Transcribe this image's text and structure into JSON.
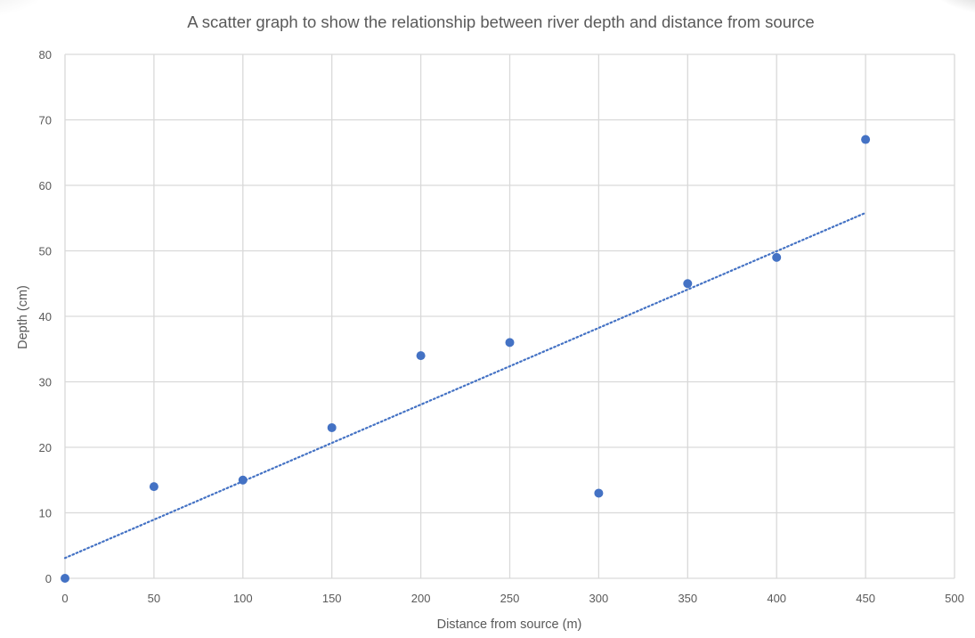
{
  "chart_data": {
    "type": "scatter",
    "title": "A scatter graph to show the relationship between river depth and distance from source",
    "xlabel": "Distance from source (m)",
    "ylabel": "Depth (cm)",
    "xlim": [
      0,
      500
    ],
    "ylim": [
      0,
      80
    ],
    "x_ticks": [
      0,
      50,
      100,
      150,
      200,
      250,
      300,
      350,
      400,
      450,
      500
    ],
    "y_ticks": [
      0,
      10,
      20,
      30,
      40,
      50,
      60,
      70,
      80
    ],
    "grid": true,
    "legend": "none",
    "series": [
      {
        "name": "Depth",
        "color": "#4472c4",
        "points": [
          {
            "x": 0,
            "y": 0
          },
          {
            "x": 50,
            "y": 14
          },
          {
            "x": 100,
            "y": 15
          },
          {
            "x": 150,
            "y": 23
          },
          {
            "x": 200,
            "y": 34
          },
          {
            "x": 250,
            "y": 36
          },
          {
            "x": 300,
            "y": 13
          },
          {
            "x": 350,
            "y": 45
          },
          {
            "x": 400,
            "y": 49
          },
          {
            "x": 450,
            "y": 67
          }
        ]
      }
    ],
    "trendline": {
      "type": "linear",
      "style": "dotted",
      "color": "#4472c4",
      "x_start": 0,
      "y_start": 3.1,
      "x_end": 450,
      "y_end": 55.8
    }
  },
  "colors": {
    "marker": "#4472c4",
    "gridline": "#d9d9d9",
    "text": "#595959"
  }
}
